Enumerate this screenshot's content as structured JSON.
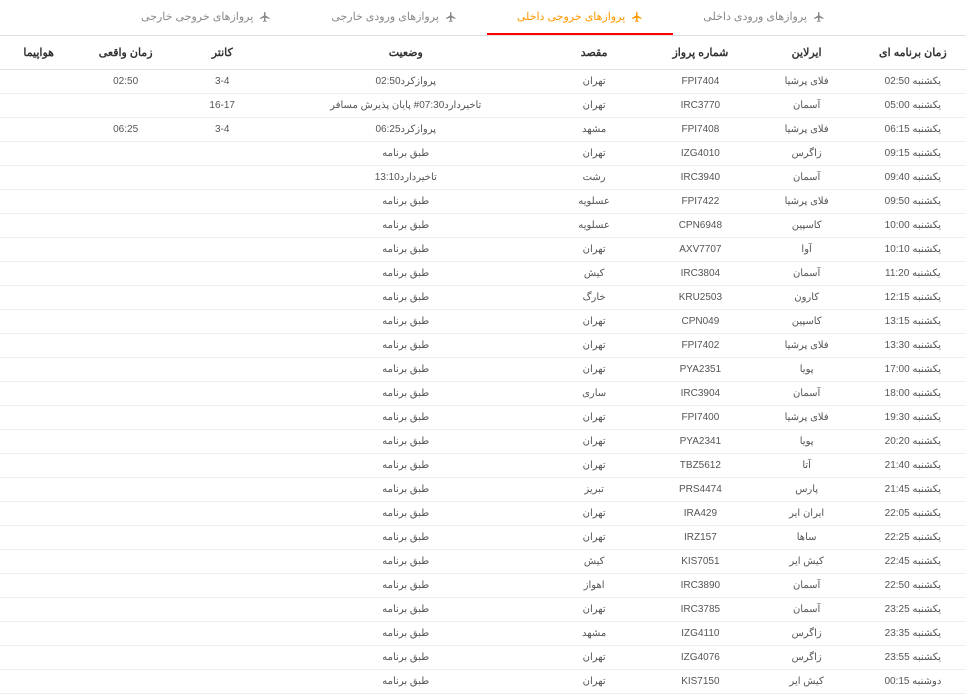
{
  "tabs": [
    {
      "label": "پروازهای ورودی داخلی",
      "active": false
    },
    {
      "label": "پروازهای خروجی داخلی",
      "active": true
    },
    {
      "label": "پروازهای ورودی خارجی",
      "active": false
    },
    {
      "label": "پروازهای خروجی خارجی",
      "active": false
    }
  ],
  "columns": {
    "scheduled": "زمان برنامه ای",
    "airline": "ایرلاین",
    "flight": "شماره پرواز",
    "destination": "مقصد",
    "status": "وضعیت",
    "counter": "کانتر",
    "actual": "زمان واقعی",
    "aircraft": "هواپیما"
  },
  "rows": [
    {
      "scheduled": "یکشنبه 02:50",
      "airline": "فلای پرشیا",
      "flight": "FPI7404",
      "destination": "تهران",
      "status": "پروازکرد02:50",
      "counter": "3-4",
      "actual": "02:50",
      "aircraft": ""
    },
    {
      "scheduled": "یکشنبه 05:00",
      "airline": "آسمان",
      "flight": "IRC3770",
      "destination": "تهران",
      "status": "تاخیردارد07:30# پایان پذیرش مسافر",
      "counter": "16-17",
      "actual": "",
      "aircraft": ""
    },
    {
      "scheduled": "یکشنبه 06:15",
      "airline": "فلای پرشیا",
      "flight": "FPI7408",
      "destination": "مشهد",
      "status": "پروازکرد06:25",
      "counter": "3-4",
      "actual": "06:25",
      "aircraft": ""
    },
    {
      "scheduled": "یکشنبه 09:15",
      "airline": "زاگرس",
      "flight": "IZG4010",
      "destination": "تهران",
      "status": "طبق برنامه",
      "counter": "",
      "actual": "",
      "aircraft": ""
    },
    {
      "scheduled": "یکشنبه 09:40",
      "airline": "آسمان",
      "flight": "IRC3940",
      "destination": "رشت",
      "status": "تاخیردارد13:10",
      "counter": "",
      "actual": "",
      "aircraft": ""
    },
    {
      "scheduled": "یکشنبه 09:50",
      "airline": "فلای پرشیا",
      "flight": "FPI7422",
      "destination": "عسلویه",
      "status": "طبق برنامه",
      "counter": "",
      "actual": "",
      "aircraft": ""
    },
    {
      "scheduled": "یکشنبه 10:00",
      "airline": "کاسپین",
      "flight": "CPN6948",
      "destination": "عسلویه",
      "status": "طبق برنامه",
      "counter": "",
      "actual": "",
      "aircraft": ""
    },
    {
      "scheduled": "یکشنبه 10:10",
      "airline": "آوا",
      "flight": "AXV7707",
      "destination": "تهران",
      "status": "طبق برنامه",
      "counter": "",
      "actual": "",
      "aircraft": ""
    },
    {
      "scheduled": "یکشنبه 11:20",
      "airline": "آسمان",
      "flight": "IRC3804",
      "destination": "کیش",
      "status": "طبق برنامه",
      "counter": "",
      "actual": "",
      "aircraft": ""
    },
    {
      "scheduled": "یکشنبه 12:15",
      "airline": "کارون",
      "flight": "KRU2503",
      "destination": "خارگ",
      "status": "طبق برنامه",
      "counter": "",
      "actual": "",
      "aircraft": ""
    },
    {
      "scheduled": "یکشنبه 13:15",
      "airline": "کاسپین",
      "flight": "CPN049",
      "destination": "تهران",
      "status": "طبق برنامه",
      "counter": "",
      "actual": "",
      "aircraft": ""
    },
    {
      "scheduled": "یکشنبه 13:30",
      "airline": "فلای پرشیا",
      "flight": "FPI7402",
      "destination": "تهران",
      "status": "طبق برنامه",
      "counter": "",
      "actual": "",
      "aircraft": ""
    },
    {
      "scheduled": "یکشنبه 17:00",
      "airline": "پویا",
      "flight": "PYA2351",
      "destination": "تهران",
      "status": "طبق برنامه",
      "counter": "",
      "actual": "",
      "aircraft": ""
    },
    {
      "scheduled": "یکشنبه 18:00",
      "airline": "آسمان",
      "flight": "IRC3904",
      "destination": "ساری",
      "status": "طبق برنامه",
      "counter": "",
      "actual": "",
      "aircraft": ""
    },
    {
      "scheduled": "یکشنبه 19:30",
      "airline": "فلای پرشیا",
      "flight": "FPI7400",
      "destination": "تهران",
      "status": "طبق برنامه",
      "counter": "",
      "actual": "",
      "aircraft": ""
    },
    {
      "scheduled": "یکشنبه 20:20",
      "airline": "پویا",
      "flight": "PYA2341",
      "destination": "تهران",
      "status": "طبق برنامه",
      "counter": "",
      "actual": "",
      "aircraft": ""
    },
    {
      "scheduled": "یکشنبه 21:40",
      "airline": "آتا",
      "flight": "TBZ5612",
      "destination": "تهران",
      "status": "طبق برنامه",
      "counter": "",
      "actual": "",
      "aircraft": ""
    },
    {
      "scheduled": "یکشنبه 21:45",
      "airline": "پارس",
      "flight": "PRS4474",
      "destination": "تبریز",
      "status": "طبق برنامه",
      "counter": "",
      "actual": "",
      "aircraft": ""
    },
    {
      "scheduled": "یکشنبه 22:05",
      "airline": "ایران ایر",
      "flight": "IRA429",
      "destination": "تهران",
      "status": "طبق برنامه",
      "counter": "",
      "actual": "",
      "aircraft": ""
    },
    {
      "scheduled": "یکشنبه 22:25",
      "airline": "ساها",
      "flight": "IRZ157",
      "destination": "تهران",
      "status": "طبق برنامه",
      "counter": "",
      "actual": "",
      "aircraft": ""
    },
    {
      "scheduled": "یکشنبه 22:45",
      "airline": "کیش ایر",
      "flight": "KIS7051",
      "destination": "کیش",
      "status": "طبق برنامه",
      "counter": "",
      "actual": "",
      "aircraft": ""
    },
    {
      "scheduled": "یکشنبه 22:50",
      "airline": "آسمان",
      "flight": "IRC3890",
      "destination": "اهواز",
      "status": "طبق برنامه",
      "counter": "",
      "actual": "",
      "aircraft": ""
    },
    {
      "scheduled": "یکشنبه 23:25",
      "airline": "آسمان",
      "flight": "IRC3785",
      "destination": "تهران",
      "status": "طبق برنامه",
      "counter": "",
      "actual": "",
      "aircraft": ""
    },
    {
      "scheduled": "یکشنبه 23:35",
      "airline": "زاگرس",
      "flight": "IZG4110",
      "destination": "مشهد",
      "status": "طبق برنامه",
      "counter": "",
      "actual": "",
      "aircraft": ""
    },
    {
      "scheduled": "یکشنبه 23:55",
      "airline": "زاگرس",
      "flight": "IZG4076",
      "destination": "تهران",
      "status": "طبق برنامه",
      "counter": "",
      "actual": "",
      "aircraft": ""
    },
    {
      "scheduled": "دوشنبه 00:15",
      "airline": "کیش ایر",
      "flight": "KIS7150",
      "destination": "تهران",
      "status": "طبق برنامه",
      "counter": "",
      "actual": "",
      "aircraft": ""
    }
  ]
}
